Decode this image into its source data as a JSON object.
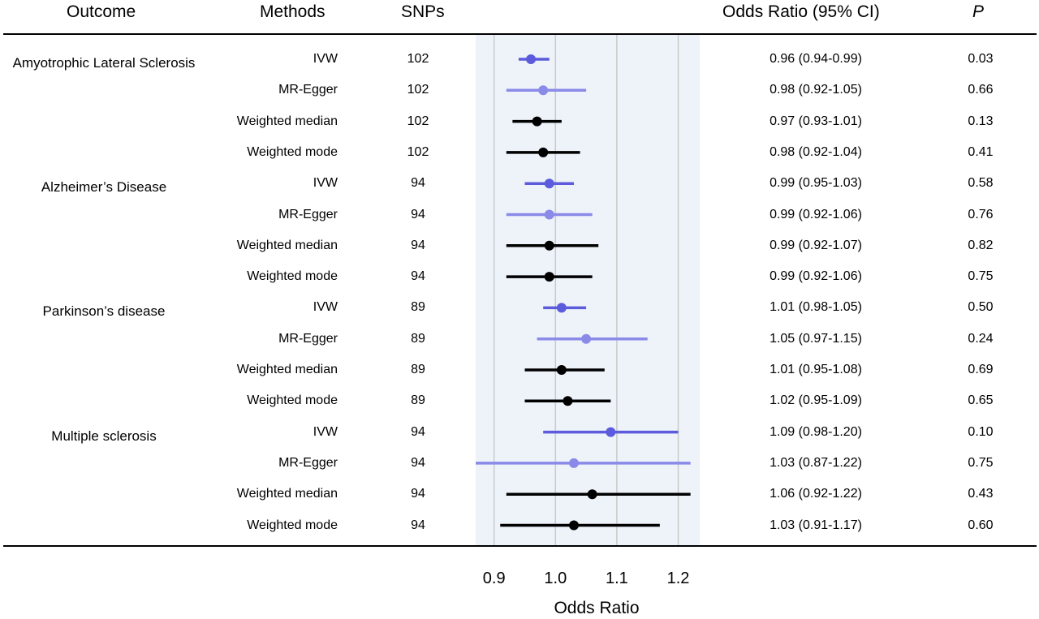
{
  "headers": {
    "outcome": "Outcome",
    "methods": "Methods",
    "snps": "SNPs",
    "odds_ratio": "Odds Ratio (95% CI)",
    "p": "P"
  },
  "colors": {
    "ivw": "#5b5bdc",
    "mr_egger": "#8a8ae8",
    "other": "#000000",
    "band": "#eef3fa",
    "grid": "#c9c9c9"
  },
  "outcomes": [
    {
      "name": "Amyotrophic Lateral Sclerosis",
      "rows": [
        {
          "method": "IVW",
          "snps": "102",
          "or_ci": "0.96 (0.94-0.99)",
          "p": "0.03"
        },
        {
          "method": "MR-Egger",
          "snps": "102",
          "or_ci": "0.98 (0.92-1.05)",
          "p": "0.66"
        },
        {
          "method": "Weighted median",
          "snps": "102",
          "or_ci": "0.97 (0.93-1.01)",
          "p": "0.13"
        },
        {
          "method": "Weighted mode",
          "snps": "102",
          "or_ci": "0.98 (0.92-1.04)",
          "p": "0.41"
        }
      ]
    },
    {
      "name": "Alzheimer’s Disease",
      "rows": [
        {
          "method": "IVW",
          "snps": "94",
          "or_ci": "0.99 (0.95-1.03)",
          "p": "0.58"
        },
        {
          "method": "MR-Egger",
          "snps": "94",
          "or_ci": "0.99 (0.92-1.06)",
          "p": "0.76"
        },
        {
          "method": "Weighted median",
          "snps": "94",
          "or_ci": "0.99 (0.92-1.07)",
          "p": "0.82"
        },
        {
          "method": "Weighted mode",
          "snps": "94",
          "or_ci": "0.99 (0.92-1.06)",
          "p": "0.75"
        }
      ]
    },
    {
      "name": "Parkinson’s disease",
      "rows": [
        {
          "method": "IVW",
          "snps": "89",
          "or_ci": "1.01 (0.98-1.05)",
          "p": "0.50"
        },
        {
          "method": "MR-Egger",
          "snps": "89",
          "or_ci": "1.05 (0.97-1.15)",
          "p": "0.24"
        },
        {
          "method": "Weighted median",
          "snps": "89",
          "or_ci": "1.01 (0.95-1.08)",
          "p": "0.69"
        },
        {
          "method": "Weighted mode",
          "snps": "89",
          "or_ci": "1.02 (0.95-1.09)",
          "p": "0.65"
        }
      ]
    },
    {
      "name": "Multiple sclerosis",
      "rows": [
        {
          "method": "IVW",
          "snps": "94",
          "or_ci": "1.09 (0.98-1.20)",
          "p": "0.10"
        },
        {
          "method": "MR-Egger",
          "snps": "94",
          "or_ci": "1.03 (0.87-1.22)",
          "p": "0.75"
        },
        {
          "method": "Weighted median",
          "snps": "94",
          "or_ci": "1.06 (0.92-1.22)",
          "p": "0.43"
        },
        {
          "method": "Weighted mode",
          "snps": "94",
          "or_ci": "1.03 (0.91-1.17)",
          "p": "0.60"
        }
      ]
    }
  ],
  "chart_data": {
    "type": "scatter",
    "subtype": "forest-plot",
    "xlabel": "Odds Ratio",
    "xlim": [
      0.87,
      1.235
    ],
    "ticks": [
      0.9,
      1.0,
      1.1,
      1.2
    ],
    "tick_labels": [
      "0.9",
      "1.0",
      "1.1",
      "1.2"
    ],
    "grid": true,
    "points": [
      {
        "outcome": "Amyotrophic Lateral Sclerosis",
        "method": "IVW",
        "or": 0.96,
        "lo": 0.94,
        "hi": 0.99
      },
      {
        "outcome": "Amyotrophic Lateral Sclerosis",
        "method": "MR-Egger",
        "or": 0.98,
        "lo": 0.92,
        "hi": 1.05
      },
      {
        "outcome": "Amyotrophic Lateral Sclerosis",
        "method": "Weighted median",
        "or": 0.97,
        "lo": 0.93,
        "hi": 1.01
      },
      {
        "outcome": "Amyotrophic Lateral Sclerosis",
        "method": "Weighted mode",
        "or": 0.98,
        "lo": 0.92,
        "hi": 1.04
      },
      {
        "outcome": "Alzheimer’s Disease",
        "method": "IVW",
        "or": 0.99,
        "lo": 0.95,
        "hi": 1.03
      },
      {
        "outcome": "Alzheimer’s Disease",
        "method": "MR-Egger",
        "or": 0.99,
        "lo": 0.92,
        "hi": 1.06
      },
      {
        "outcome": "Alzheimer’s Disease",
        "method": "Weighted median",
        "or": 0.99,
        "lo": 0.92,
        "hi": 1.07
      },
      {
        "outcome": "Alzheimer’s Disease",
        "method": "Weighted mode",
        "or": 0.99,
        "lo": 0.92,
        "hi": 1.06
      },
      {
        "outcome": "Parkinson’s disease",
        "method": "IVW",
        "or": 1.01,
        "lo": 0.98,
        "hi": 1.05
      },
      {
        "outcome": "Parkinson’s disease",
        "method": "MR-Egger",
        "or": 1.05,
        "lo": 0.97,
        "hi": 1.15
      },
      {
        "outcome": "Parkinson’s disease",
        "method": "Weighted median",
        "or": 1.01,
        "lo": 0.95,
        "hi": 1.08
      },
      {
        "outcome": "Parkinson’s disease",
        "method": "Weighted mode",
        "or": 1.02,
        "lo": 0.95,
        "hi": 1.09
      },
      {
        "outcome": "Multiple sclerosis",
        "method": "IVW",
        "or": 1.09,
        "lo": 0.98,
        "hi": 1.2
      },
      {
        "outcome": "Multiple sclerosis",
        "method": "MR-Egger",
        "or": 1.03,
        "lo": 0.87,
        "hi": 1.22
      },
      {
        "outcome": "Multiple sclerosis",
        "method": "Weighted median",
        "or": 1.06,
        "lo": 0.92,
        "hi": 1.22
      },
      {
        "outcome": "Multiple sclerosis",
        "method": "Weighted mode",
        "or": 1.03,
        "lo": 0.91,
        "hi": 1.17
      }
    ]
  }
}
